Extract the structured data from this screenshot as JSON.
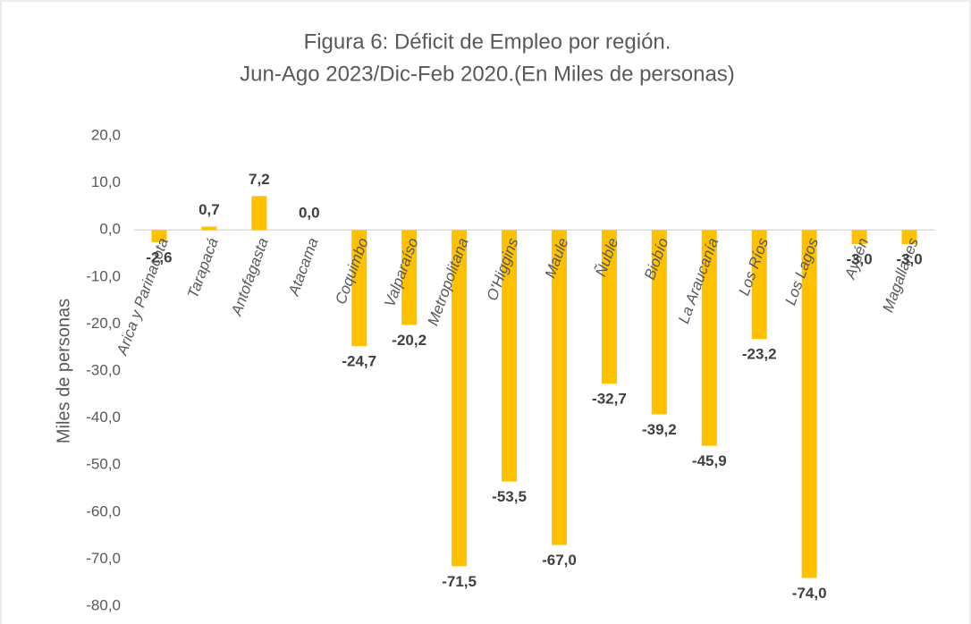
{
  "chart_data": {
    "type": "bar",
    "title": [
      "Figura 6: Déficit de Empleo por región.",
      "Jun-Ago 2023/Dic-Feb 2020.(En Miles de personas)"
    ],
    "y_label": "Miles de personas",
    "categories": [
      "Arica y Parinacota",
      "Tarapacá",
      "Antofagasta",
      "Atacama",
      "Coquimbo",
      "Valparaíso",
      "Metropolitana",
      "O'Higgins",
      "Maule",
      "Ñuble",
      "Biobío",
      "La Araucanía",
      "Los Ríos",
      "Los Lagos",
      "Aysén",
      "Magallanes"
    ],
    "values": [
      -2.6,
      0.7,
      7.2,
      0.0,
      -24.7,
      -20.2,
      -71.5,
      -53.5,
      -67.0,
      -32.7,
      -39.2,
      -45.9,
      -23.2,
      -74.0,
      -3.0,
      -3.0
    ],
    "value_labels": [
      "-2,6",
      "0,7",
      "7,2",
      "0,0",
      "-24,7",
      "-20,2",
      "-71,5",
      "-53,5",
      "-67,0",
      "-32,7",
      "-39,2",
      "-45,9",
      "-23,2",
      "-74,0",
      "-3,0",
      "-3,0"
    ],
    "color": "#ffc000",
    "ylim": [
      -80,
      20
    ],
    "yticks": [
      {
        "value": 20,
        "label": "20,0"
      },
      {
        "value": 10,
        "label": "10,0"
      },
      {
        "value": 0,
        "label": "0,0"
      },
      {
        "value": -10,
        "label": "-10,0"
      },
      {
        "value": -20,
        "label": "-20,0"
      },
      {
        "value": -30,
        "label": "-30,0"
      },
      {
        "value": -40,
        "label": "-40,0"
      },
      {
        "value": -50,
        "label": "-50,0"
      },
      {
        "value": -60,
        "label": "-60,0"
      },
      {
        "value": -70,
        "label": "-70,0"
      },
      {
        "value": -80,
        "label": "-80,0"
      }
    ],
    "grid": false
  }
}
